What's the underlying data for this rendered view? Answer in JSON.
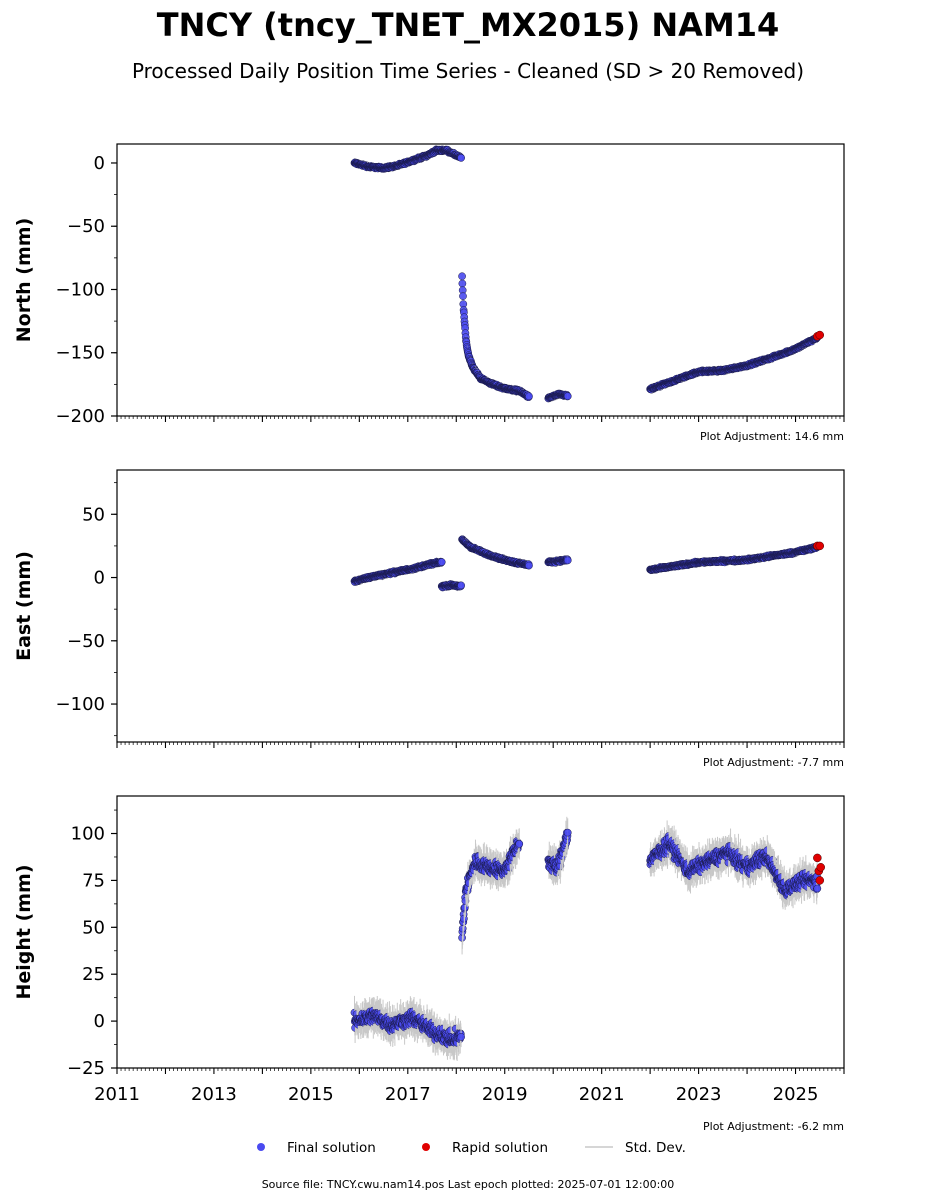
{
  "title": "TNCY (tncy_TNET_MX2015) NAM14",
  "subtitle": "Processed Daily Position Time Series - Cleaned (SD > 20 Removed)",
  "source_note": "Source file: TNCY.cwu.nam14.pos  Last epoch plotted: 2025-07-01 12:00:00",
  "colors": {
    "final": "#4a4af0",
    "rapid": "#e00000",
    "stddev": "#c8c8c8",
    "edge": "#1a1a4a"
  },
  "legend": {
    "final": "Final solution",
    "rapid": "Rapid solution",
    "stddev": "Std. Dev.",
    "placement": "bottom-center"
  },
  "chart_data": [
    {
      "type": "scatter",
      "ylabel": "North (mm)",
      "adjustment": "Plot Adjustment: 14.6 mm",
      "xlim": [
        2011.0,
        2026.0
      ],
      "ylim": [
        -200,
        15
      ],
      "yticks": [
        0,
        -50,
        -100,
        -150,
        -200
      ],
      "yticklabels": [
        "0",
        "−50",
        "−100",
        "−150",
        "−200"
      ],
      "series": [
        {
          "name": "Final solution",
          "segments": [
            {
              "x": [
                2015.9,
                2016.2,
                2016.5,
                2016.8,
                2017.1,
                2017.4,
                2017.6,
                2017.8,
                2018.1
              ],
              "y": [
                0,
                -3,
                -4,
                -2,
                2,
                6,
                10,
                10,
                4
              ]
            },
            {
              "x": [
                2018.12,
                2018.15,
                2018.2,
                2018.25,
                2018.35,
                2018.5,
                2018.7,
                2018.9,
                2019.1,
                2019.3,
                2019.5
              ],
              "y": [
                -90,
                -115,
                -140,
                -152,
                -162,
                -170,
                -174,
                -177,
                -179,
                -180,
                -185
              ]
            },
            {
              "x": [
                2019.9,
                2020.1,
                2020.3
              ],
              "y": [
                -186,
                -183,
                -184
              ]
            },
            {
              "x": [
                2022.0,
                2022.5,
                2023.0,
                2023.5,
                2024.0,
                2024.5,
                2025.0,
                2025.45
              ],
              "y": [
                -179,
                -172,
                -165,
                -164,
                -160,
                -154,
                -147,
                -138
              ]
            }
          ]
        },
        {
          "name": "Rapid solution",
          "x": [
            2025.45,
            2025.5
          ],
          "y": [
            -137,
            -136
          ]
        }
      ]
    },
    {
      "type": "scatter",
      "ylabel": "East (mm)",
      "adjustment": "Plot Adjustment: -7.7 mm",
      "xlim": [
        2011.0,
        2026.0
      ],
      "ylim": [
        -130,
        85
      ],
      "yticks": [
        50,
        0,
        -50,
        -100
      ],
      "yticklabels": [
        "50",
        "0",
        "−50",
        "−100"
      ],
      "series": [
        {
          "name": "Final solution",
          "segments": [
            {
              "x": [
                2015.9,
                2016.3,
                2016.7,
                2017.1,
                2017.5,
                2017.7
              ],
              "y": [
                -3,
                1,
                4,
                7,
                11,
                12
              ]
            },
            {
              "x": [
                2017.7,
                2017.9,
                2018.1
              ],
              "y": [
                -7,
                -6,
                -7
              ]
            },
            {
              "x": [
                2018.12,
                2018.3,
                2018.6,
                2018.9,
                2019.2,
                2019.5
              ],
              "y": [
                30,
                24,
                19,
                15,
                12,
                10
              ]
            },
            {
              "x": [
                2019.9,
                2020.1,
                2020.3
              ],
              "y": [
                12,
                13,
                14
              ]
            },
            {
              "x": [
                2022.0,
                2022.5,
                2023.0,
                2023.5,
                2024.0,
                2024.5,
                2025.0,
                2025.45
              ],
              "y": [
                6,
                9,
                12,
                13,
                14,
                17,
                20,
                24
              ]
            }
          ]
        },
        {
          "name": "Rapid solution",
          "x": [
            2025.45,
            2025.5
          ],
          "y": [
            25,
            25
          ]
        }
      ]
    },
    {
      "type": "scatter",
      "ylabel": "Height (mm)",
      "adjustment": "Plot Adjustment: -6.2 mm",
      "xlim": [
        2011.0,
        2026.0
      ],
      "ylim": [
        -25,
        120
      ],
      "yticks": [
        100,
        75,
        50,
        25,
        0,
        -25
      ],
      "yticklabels": [
        "100",
        "75",
        "50",
        "25",
        "0",
        "−25"
      ],
      "xticks": [
        2011,
        2013,
        2015,
        2017,
        2019,
        2021,
        2023,
        2025
      ],
      "xticklabels": [
        "2011",
        "2013",
        "2015",
        "2017",
        "2019",
        "2021",
        "2023",
        "2025"
      ],
      "series": [
        {
          "name": "Final solution",
          "segments": [
            {
              "x": [
                2015.9,
                2016.3,
                2016.7,
                2017.1,
                2017.5,
                2017.9,
                2018.1
              ],
              "y": [
                0,
                3,
                -2,
                2,
                -5,
                -10,
                -8
              ]
            },
            {
              "x": [
                2018.12,
                2018.2,
                2018.4,
                2018.7,
                2019.0,
                2019.3
              ],
              "y": [
                45,
                70,
                85,
                82,
                80,
                95
              ]
            },
            {
              "x": [
                2019.9,
                2020.1,
                2020.3
              ],
              "y": [
                85,
                82,
                100
              ]
            },
            {
              "x": [
                2022.0,
                2022.4,
                2022.8,
                2023.2,
                2023.6,
                2024.0,
                2024.4,
                2024.8,
                2025.2,
                2025.45
              ],
              "y": [
                85,
                95,
                80,
                85,
                90,
                82,
                88,
                70,
                75,
                75
              ]
            }
          ]
        },
        {
          "name": "Rapid solution",
          "x": [
            2025.45,
            2025.48,
            2025.5,
            2025.52
          ],
          "y": [
            87,
            80,
            75,
            82
          ]
        }
      ]
    }
  ]
}
